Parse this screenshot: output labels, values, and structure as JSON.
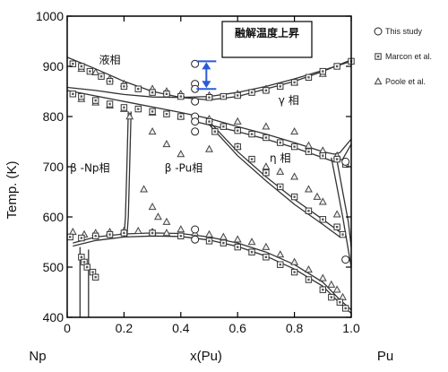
{
  "chart_data": {
    "type": "scatter",
    "xlabel": "x(Pu)",
    "ylabel": "Temp. (K)",
    "xlim": [
      0,
      1.0
    ],
    "ylim": [
      400,
      1000
    ],
    "xticks": [
      0,
      0.2,
      0.4,
      0.6,
      0.8,
      1.0
    ],
    "xtick_labels": [
      "0",
      "0.2",
      "0.4",
      "0.6",
      "0.8",
      "1.0"
    ],
    "yticks": [
      400,
      500,
      600,
      700,
      800,
      900,
      1000
    ],
    "ytick_labels": [
      "400",
      "500",
      "600",
      "700",
      "800",
      "900",
      "1000"
    ],
    "x_end_labels": {
      "left": "Np",
      "right": "Pu"
    },
    "legend_position": "top-right, outside plot",
    "legend": [
      {
        "label": "This study",
        "marker": "circle-open"
      },
      {
        "label": "Marcon et al.",
        "marker": "square-dot"
      },
      {
        "label": "Poole et al.",
        "marker": "triangle"
      }
    ],
    "annotation": {
      "text": "融解温度上昇",
      "arrow": {
        "x": 0.49,
        "y_from": 855,
        "y_to": 910,
        "color": "#2a5bd7"
      }
    },
    "phase_labels": [
      {
        "text": "液相",
        "x": 0.15,
        "y": 905
      },
      {
        "text": "γ 相",
        "x": 0.78,
        "y": 825
      },
      {
        "text": "β -Np相",
        "x": 0.08,
        "y": 690
      },
      {
        "text": "β -Pu相",
        "x": 0.41,
        "y": 690
      },
      {
        "text": "η 相",
        "x": 0.75,
        "y": 710
      }
    ],
    "curves": [
      {
        "name": "liquidus",
        "points": [
          [
            0,
            918
          ],
          [
            0.1,
            895
          ],
          [
            0.2,
            870
          ],
          [
            0.3,
            850
          ],
          [
            0.4,
            838
          ],
          [
            0.5,
            833
          ],
          [
            0.6,
            840
          ],
          [
            0.7,
            855
          ],
          [
            0.8,
            870
          ],
          [
            0.9,
            890
          ],
          [
            1.0,
            913
          ]
        ]
      },
      {
        "name": "solidus",
        "points": [
          [
            0,
            858
          ],
          [
            0.1,
            852
          ],
          [
            0.2,
            844
          ],
          [
            0.3,
            839
          ],
          [
            0.4,
            838
          ],
          [
            0.5,
            840
          ],
          [
            0.6,
            848
          ],
          [
            0.7,
            860
          ],
          [
            0.8,
            875
          ],
          [
            0.9,
            892
          ],
          [
            1.0,
            910
          ]
        ]
      },
      {
        "name": "gamma-lower-1",
        "points": [
          [
            0,
            852
          ],
          [
            0.2,
            830
          ],
          [
            0.4,
            808
          ],
          [
            0.5,
            796
          ],
          [
            0.6,
            780
          ],
          [
            0.7,
            765
          ],
          [
            0.8,
            748
          ],
          [
            0.9,
            730
          ],
          [
            0.94,
            725
          ],
          [
            0.96,
            728
          ],
          [
            1.0,
            755
          ]
        ]
      },
      {
        "name": "gamma-lower-2",
        "points": [
          [
            0.45,
            790
          ],
          [
            0.6,
            770
          ],
          [
            0.7,
            755
          ],
          [
            0.8,
            738
          ],
          [
            0.9,
            718
          ],
          [
            0.94,
            710
          ],
          [
            0.97,
            715
          ],
          [
            1.0,
            745
          ]
        ]
      },
      {
        "name": "beta-pu-eta-1",
        "points": [
          [
            0.5,
            790
          ],
          [
            0.6,
            730
          ],
          [
            0.7,
            680
          ],
          [
            0.8,
            635
          ],
          [
            0.9,
            595
          ],
          [
            0.96,
            570
          ]
        ]
      },
      {
        "name": "beta-pu-eta-2",
        "points": [
          [
            0.5,
            784
          ],
          [
            0.6,
            722
          ],
          [
            0.7,
            672
          ],
          [
            0.8,
            625
          ],
          [
            0.9,
            585
          ],
          [
            0.96,
            560
          ]
        ]
      },
      {
        "name": "beta-np-line-1",
        "points": [
          [
            0.02,
            548
          ],
          [
            0.1,
            560
          ],
          [
            0.2,
            566
          ],
          [
            0.3,
            568
          ],
          [
            0.4,
            567
          ],
          [
            0.5,
            560
          ],
          [
            0.6,
            548
          ],
          [
            0.7,
            530
          ],
          [
            0.8,
            505
          ],
          [
            0.9,
            470
          ],
          [
            0.96,
            435
          ],
          [
            1.0,
            415
          ]
        ]
      },
      {
        "name": "beta-np-line-2",
        "points": [
          [
            0.02,
            542
          ],
          [
            0.1,
            553
          ],
          [
            0.2,
            560
          ],
          [
            0.3,
            562
          ],
          [
            0.4,
            561
          ],
          [
            0.5,
            554
          ],
          [
            0.6,
            541
          ],
          [
            0.7,
            522
          ],
          [
            0.8,
            496
          ],
          [
            0.9,
            462
          ],
          [
            0.96,
            428
          ],
          [
            1.0,
            408
          ]
        ]
      },
      {
        "name": "np-vertical-1",
        "points": [
          [
            0.2,
            560
          ],
          [
            0.205,
            600
          ],
          [
            0.21,
            700
          ],
          [
            0.215,
            810
          ]
        ]
      },
      {
        "name": "np-vertical-2",
        "points": [
          [
            0.21,
            560
          ],
          [
            0.215,
            600
          ],
          [
            0.22,
            700
          ],
          [
            0.225,
            810
          ]
        ]
      },
      {
        "name": "pu-right-1",
        "points": [
          [
            0.93,
            718
          ],
          [
            0.95,
            660
          ],
          [
            0.97,
            600
          ],
          [
            1.0,
            500
          ]
        ]
      },
      {
        "name": "pu-right-2",
        "points": [
          [
            0.95,
            712
          ],
          [
            0.97,
            650
          ],
          [
            0.99,
            590
          ],
          [
            1.0,
            540
          ]
        ]
      },
      {
        "name": "left-drop-1",
        "points": [
          [
            0.045,
            540
          ],
          [
            0.045,
            400
          ]
        ]
      },
      {
        "name": "left-drop-2",
        "points": [
          [
            0.075,
            535
          ],
          [
            0.075,
            400
          ]
        ]
      }
    ],
    "series": [
      {
        "name": "This study",
        "marker": "circle-open",
        "points": [
          [
            0.45,
            905
          ],
          [
            0.45,
            865
          ],
          [
            0.45,
            855
          ],
          [
            0.45,
            830
          ],
          [
            0.45,
            800
          ],
          [
            0.45,
            790
          ],
          [
            0.45,
            770
          ],
          [
            0.45,
            575
          ],
          [
            0.45,
            555
          ],
          [
            0.98,
            710
          ],
          [
            0.98,
            515
          ]
        ]
      },
      {
        "name": "Marcon et al.",
        "marker": "square-dot",
        "points": [
          [
            0.02,
            905
          ],
          [
            0.05,
            900
          ],
          [
            0.08,
            890
          ],
          [
            0.12,
            880
          ],
          [
            0.15,
            870
          ],
          [
            0.2,
            860
          ],
          [
            0.25,
            855
          ],
          [
            0.3,
            848
          ],
          [
            0.35,
            845
          ],
          [
            0.4,
            840
          ],
          [
            0.5,
            838
          ],
          [
            0.55,
            840
          ],
          [
            0.6,
            842
          ],
          [
            0.65,
            848
          ],
          [
            0.7,
            852
          ],
          [
            0.75,
            860
          ],
          [
            0.8,
            868
          ],
          [
            0.85,
            878
          ],
          [
            0.9,
            890
          ],
          [
            0.95,
            900
          ],
          [
            1.0,
            910
          ],
          [
            0.02,
            845
          ],
          [
            0.05,
            840
          ],
          [
            0.1,
            832
          ],
          [
            0.15,
            825
          ],
          [
            0.2,
            818
          ],
          [
            0.25,
            815
          ],
          [
            0.3,
            810
          ],
          [
            0.35,
            805
          ],
          [
            0.4,
            800
          ],
          [
            0.45,
            795
          ],
          [
            0.5,
            790
          ],
          [
            0.55,
            780
          ],
          [
            0.6,
            772
          ],
          [
            0.65,
            765
          ],
          [
            0.7,
            758
          ],
          [
            0.75,
            748
          ],
          [
            0.8,
            740
          ],
          [
            0.85,
            730
          ],
          [
            0.9,
            722
          ],
          [
            0.95,
            715
          ],
          [
            0.98,
            705
          ],
          [
            0.52,
            770
          ],
          [
            0.6,
            740
          ],
          [
            0.65,
            715
          ],
          [
            0.7,
            688
          ],
          [
            0.75,
            660
          ],
          [
            0.8,
            640
          ],
          [
            0.85,
            612
          ],
          [
            0.9,
            595
          ],
          [
            0.95,
            580
          ],
          [
            0.97,
            565
          ],
          [
            0.01,
            560
          ],
          [
            0.05,
            558
          ],
          [
            0.1,
            562
          ],
          [
            0.15,
            565
          ],
          [
            0.2,
            568
          ],
          [
            0.3,
            568
          ],
          [
            0.4,
            562
          ],
          [
            0.5,
            552
          ],
          [
            0.55,
            548
          ],
          [
            0.6,
            540
          ],
          [
            0.65,
            530
          ],
          [
            0.7,
            520
          ],
          [
            0.75,
            505
          ],
          [
            0.8,
            490
          ],
          [
            0.85,
            475
          ],
          [
            0.9,
            455
          ],
          [
            0.93,
            440
          ],
          [
            0.96,
            430
          ],
          [
            0.98,
            418
          ],
          [
            0.05,
            520
          ],
          [
            0.06,
            510
          ],
          [
            0.07,
            500
          ],
          [
            0.09,
            490
          ],
          [
            0.1,
            480
          ]
        ]
      },
      {
        "name": "Poole et al.",
        "marker": "triangle",
        "points": [
          [
            0.05,
            895
          ],
          [
            0.1,
            888
          ],
          [
            0.15,
            875
          ],
          [
            0.2,
            865
          ],
          [
            0.3,
            855
          ],
          [
            0.35,
            850
          ],
          [
            0.4,
            845
          ],
          [
            0.5,
            842
          ],
          [
            0.6,
            845
          ],
          [
            0.7,
            855
          ],
          [
            0.8,
            868
          ],
          [
            0.9,
            885
          ],
          [
            0.05,
            835
          ],
          [
            0.1,
            828
          ],
          [
            0.15,
            822
          ],
          [
            0.2,
            815
          ],
          [
            0.3,
            808
          ],
          [
            0.4,
            800
          ],
          [
            0.5,
            795
          ],
          [
            0.6,
            790
          ],
          [
            0.7,
            780
          ],
          [
            0.8,
            770
          ],
          [
            0.85,
            742
          ],
          [
            0.9,
            732
          ],
          [
            0.95,
            722
          ],
          [
            0.22,
            800
          ],
          [
            0.3,
            770
          ],
          [
            0.35,
            745
          ],
          [
            0.4,
            725
          ],
          [
            0.5,
            735
          ],
          [
            0.6,
            740
          ],
          [
            0.7,
            700
          ],
          [
            0.75,
            690
          ],
          [
            0.8,
            680
          ],
          [
            0.85,
            655
          ],
          [
            0.88,
            640
          ],
          [
            0.9,
            630
          ],
          [
            0.95,
            605
          ],
          [
            0.27,
            655
          ],
          [
            0.3,
            620
          ],
          [
            0.32,
            600
          ],
          [
            0.35,
            590
          ],
          [
            0.4,
            575
          ],
          [
            0.45,
            568
          ],
          [
            0.5,
            565
          ],
          [
            0.55,
            560
          ],
          [
            0.6,
            555
          ],
          [
            0.65,
            550
          ],
          [
            0.7,
            540
          ],
          [
            0.75,
            525
          ],
          [
            0.8,
            510
          ],
          [
            0.85,
            495
          ],
          [
            0.9,
            478
          ],
          [
            0.93,
            465
          ],
          [
            0.95,
            455
          ],
          [
            0.97,
            440
          ],
          [
            0.02,
            570
          ],
          [
            0.06,
            565
          ],
          [
            0.1,
            568
          ],
          [
            0.15,
            570
          ],
          [
            0.2,
            572
          ],
          [
            0.25,
            572
          ],
          [
            0.3,
            570
          ],
          [
            0.35,
            568
          ]
        ]
      }
    ]
  }
}
